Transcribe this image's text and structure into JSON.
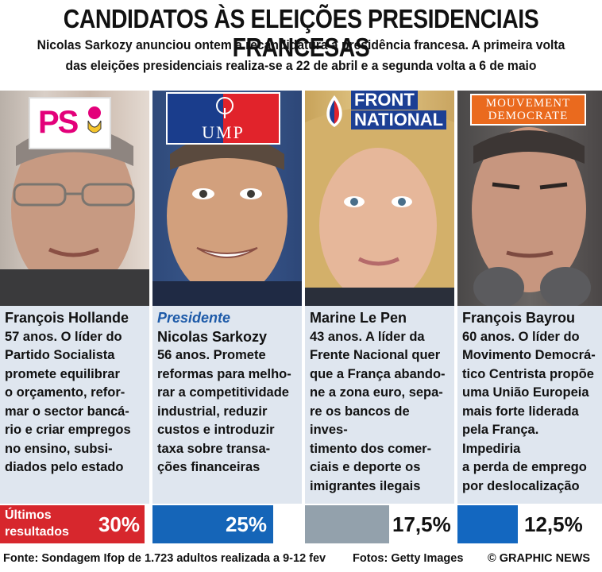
{
  "title": "CANDIDATOS ÀS ELEIÇÕES PRESIDENCIAIS FRANCESAS",
  "subtitle_line1": "Nicolas Sarkozy anunciou ontem a recandidatura à presidência francesa. A primeira volta",
  "subtitle_line2": "das eleições presidenciais realiza-se a 22 de abril e a segunda volta a 6 de maio",
  "candidates": [
    {
      "party_logo": "PS",
      "name": "François Hollande",
      "lines": [
        "57 anos. O líder do",
        "Partido Socialista",
        "promete equilibrar",
        "o orçamento, refor-",
        "mar o sector bancá-",
        "rio e criar empregos",
        "no ensino, subsi-",
        "diados pelo estado"
      ],
      "result": "30%",
      "result_value": 30
    },
    {
      "party_logo": "UMP",
      "tag": "Presidente",
      "name": "Nicolas Sarkozy",
      "lines": [
        "56 anos. Promete",
        "reformas para melho-",
        "rar a competitividade",
        "industrial, reduzir",
        "custos e introduzir",
        "taxa sobre transa-",
        "ções financeiras"
      ],
      "result": "25%",
      "result_value": 25
    },
    {
      "party_logo_line1": "FRONT",
      "party_logo_line2": "NATIONAL",
      "name": "Marine Le Pen",
      "lines": [
        "43 anos. A líder da",
        "Frente Nacional quer",
        "que a França abando-",
        "ne a zona euro, sepa-",
        "re os bancos de inves-",
        "timento dos comer-",
        "ciais e deporte os",
        "imigrantes ilegais"
      ],
      "result": "17,5%",
      "result_value": 17.5
    },
    {
      "party_logo_line1": "MOUVEMENT",
      "party_logo_line2": "DEMOCRATE",
      "name": "François Bayrou",
      "lines": [
        "60 anos.  O líder do",
        "Movimento Democrá-",
        "tico Centrista propõe",
        "uma União Europeia",
        "mais forte liderada",
        "pela França. Impediria",
        "a perda de emprego",
        "por deslocalização"
      ],
      "result": "12,5%",
      "result_value": 12.5
    }
  ],
  "results_label_line1": "Últimos",
  "results_label_line2": "resultados",
  "footer_source": "Fonte: Sondagem Ifop de 1.723 adultos realizada a 9-12 fev",
  "footer_photos": "Fotos: Getty Images",
  "footer_credit": "© GRAPHIC NEWS",
  "colors": {
    "ps": "#d7272d",
    "ump": "#1565b8",
    "fn": "#93a1ac",
    "modem": "#1367c0",
    "text_bg": "#dde6f1"
  }
}
